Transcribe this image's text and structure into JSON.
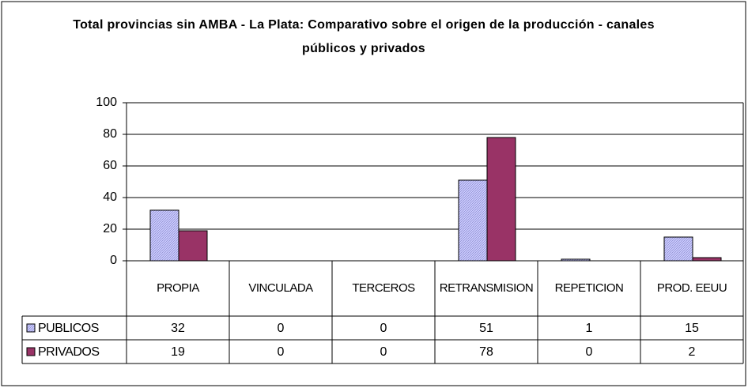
{
  "chart_data": {
    "type": "bar",
    "title": "Total provincias sin AMBA - La Plata: Comparativo sobre el origen de la producción - canales públicos y privados",
    "categories": [
      "PROPIA",
      "VINCULADA",
      "TERCEROS",
      "RETRANSMISION",
      "REPETICION",
      "PROD. EEUU"
    ],
    "series": [
      {
        "name": "PUBLICOS",
        "color": "#ccccff",
        "values": [
          32,
          0,
          0,
          51,
          1,
          15
        ]
      },
      {
        "name": "PRIVADOS",
        "color": "#993366",
        "values": [
          19,
          0,
          0,
          78,
          0,
          2
        ]
      }
    ],
    "ylim": [
      0,
      100
    ],
    "yticks": [
      0,
      20,
      40,
      60,
      80,
      100
    ],
    "grid": true
  }
}
